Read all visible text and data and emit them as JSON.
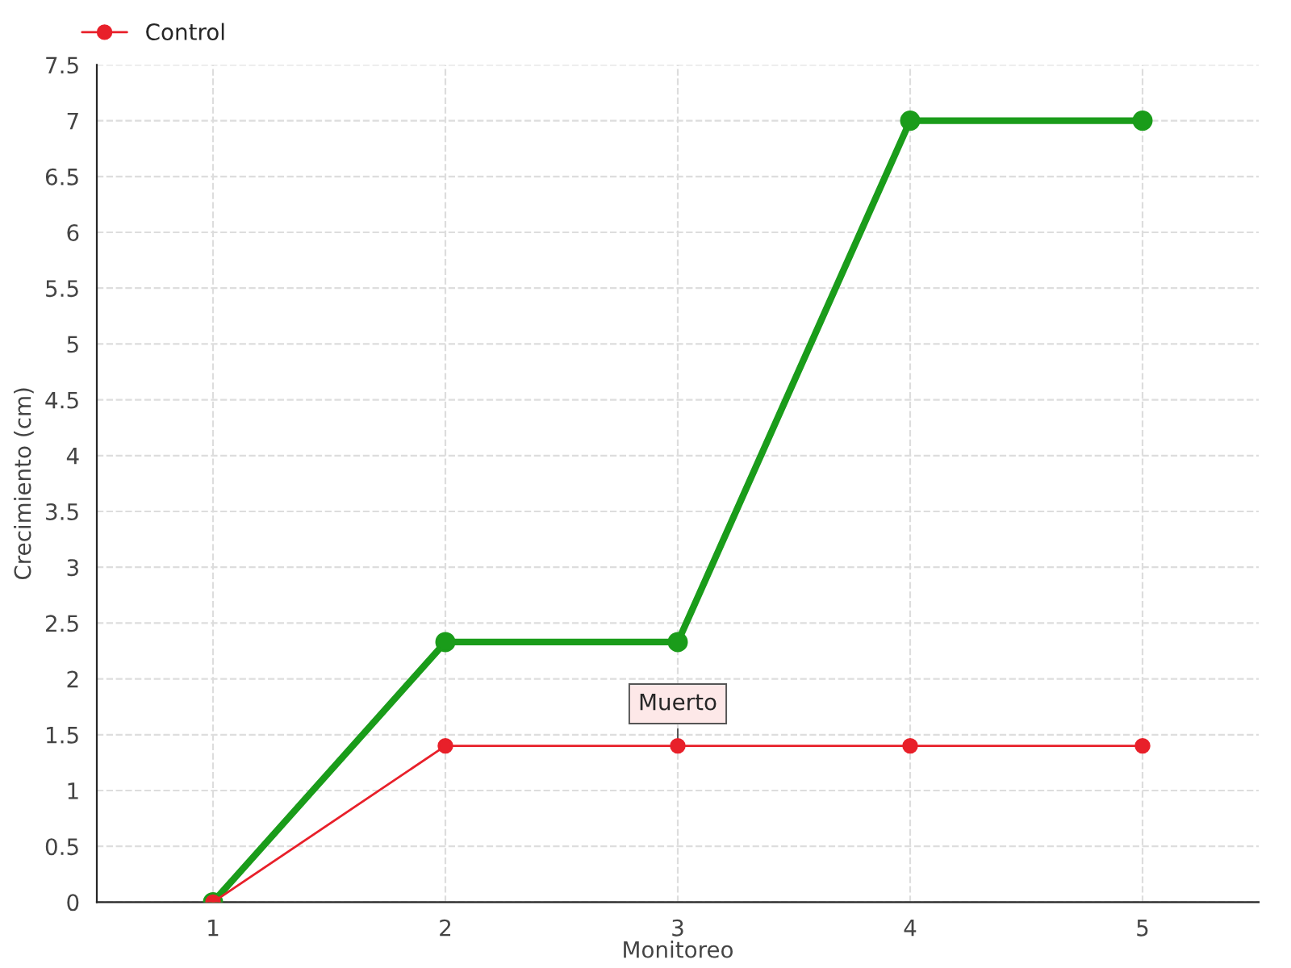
{
  "chart_data": {
    "type": "line",
    "xlabel": "Monitoreo",
    "ylabel": "Crecimiento (cm)",
    "x": [
      1,
      2,
      3,
      4,
      5
    ],
    "series": [
      {
        "color": "#1a9c1a",
        "values": [
          0,
          2.33,
          2.33,
          7,
          7
        ]
      },
      {
        "name": "Control",
        "color": "#e8202a",
        "values": [
          0,
          1.4,
          1.4,
          1.4,
          1.4
        ]
      }
    ],
    "xlim": [
      0.5,
      5.5
    ],
    "xticks": [
      1,
      2,
      3,
      4,
      5
    ],
    "ylim": [
      0,
      7.5
    ],
    "yticks": [
      0,
      0.5,
      1,
      1.5,
      2,
      2.5,
      3,
      3.5,
      4,
      4.5,
      5,
      5.5,
      6,
      6.5,
      7,
      7.5
    ],
    "annotations": [
      {
        "text": "Muerto",
        "x": 3,
        "y": 1.4
      }
    ],
    "grid": true,
    "legend": "top left",
    "marker": "circle",
    "line_style": "solid"
  }
}
